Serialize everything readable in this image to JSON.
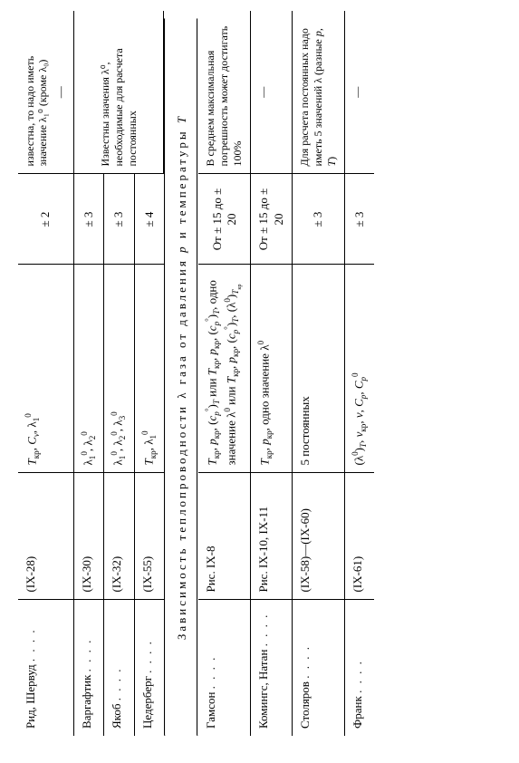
{
  "upper_note_orphan": "известна, то надо иметь значение λ₁⁰ (кроме λ₀)",
  "upper_note_group": "Известны значения λ⁰, необходимые для расчета постоянных",
  "upper_rows": [
    {
      "name": "Рид, Шервуд",
      "ref": "(IX-28)",
      "vars_html": "<span class='italic'>T</span><span class='sub'>кр</span>, <span class='italic'>C</span><span class='sub'><span class='italic'>v</span></span>, λ<span class='sub'>1</span><span class='sup'>0</span>",
      "err": "± 2",
      "note": "—"
    },
    {
      "name": "Варгафтик",
      "ref": "(IX-30)",
      "vars_html": "λ<span class='sub'>1</span><span class='sup'>0</span>, λ<span class='sub'>2</span><span class='sup'>0</span>",
      "err": "± 3",
      "note": ""
    },
    {
      "name": "Якоб",
      "ref": "(IX-32)",
      "vars_html": "λ<span class='sub'>1</span><span class='sup'>0</span>, λ<span class='sub'>2</span><span class='sup'>0</span>, λ<span class='sub'>3</span><span class='sup'>0</span>",
      "err": "± 3",
      "note": ""
    },
    {
      "name": "Цедерберг",
      "ref": "(IX-55)",
      "vars_html": "<span class='italic'>T</span><span class='sub'>кр</span>, λ<span class='sub'>1</span><span class='sup'>0</span>",
      "err": "± 4",
      "note": ""
    }
  ],
  "section_title_html": "Зависимость теплопроводности λ газа от давления <span class='italic'>p</span> и температуры <span class='italic'>T</span>",
  "lower_rows": [
    {
      "name": "Гамсон",
      "ref": "Рис. IX-8",
      "vars_html": "<span class='italic'>T</span><span class='sub'>кр</span>, <span class='italic'>p</span><span class='sub'>кр</span>, (<span class='italic'>c</span><span class='sub'><span class='italic'>p</span></span><span class='sup'>°</span>)<span class='sub'><span class='italic'>T</span></span> или <span class='italic'>T</span><span class='sub'>кр</span>, <span class='italic'>p</span><span class='sub'>кр</span>, (<span class='italic'>c</span><span class='sub'><span class='italic'>p</span></span><span class='sup'>°</span>)<span class='sub'><span class='italic'>T</span></span>, одно значение λ<span class='sup'>0</span> или <span class='italic'>T</span><span class='sub'>кр</span>, <span class='italic'>p</span><span class='sub'>кр</span>, (<span class='italic'>c</span><span class='sub'><span class='italic'>p</span></span><span class='sup'>°</span>)<span class='sub'><span class='italic'>T</span></span>, (λ<span class='sup'>0</span>)<span class='sub'><span class='italic'>T</span><span class='sub'>кр</span></span>",
      "err": "От ± 15 до ± 20",
      "note": "В среднем максимальная погрешность может достигать 100%"
    },
    {
      "name": "Комингс, Натан",
      "ref": "Рис. IX-10, IX-11",
      "vars_html": "<span class='italic'>T</span><span class='sub'>кр</span>, <span class='italic'>p</span><span class='sub'>кр</span>, одно значение λ<span class='sup'>0</span>",
      "err": "От ± 15 до ± 20",
      "note": "—"
    },
    {
      "name": "Столяров",
      "ref": "(IX-58)—(IX-60)",
      "vars_html": "5 постоянных",
      "err": "± 3",
      "note": "Для расчета постоянных надо иметь 5 значений λ (разные <span class='italic'>p</span>, <span class='italic'>T</span>)"
    },
    {
      "name": "Франк",
      "ref": "(IX-61)",
      "vars_html": "(λ<span class='sup'>0</span>)<span class='sub'><span class='italic'>T</span></span>, <span class='italic'>v</span><span class='sub'>кр</span>, <span class='italic'>v</span>, <span class='italic'>C</span><span class='sub'><span class='italic'>p</span></span>, <span class='italic'>C</span><span class='sub'><span class='italic'>p</span></span><span class='sup'>0</span>",
      "err": "± 3",
      "note": "—"
    }
  ]
}
